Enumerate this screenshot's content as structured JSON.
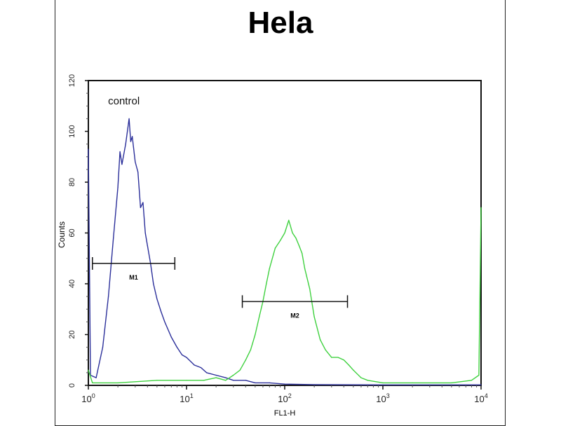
{
  "chart_data": {
    "type": "line",
    "title": "Hela",
    "xlabel": "FL1-H",
    "ylabel": "Counts",
    "x_scale": "log",
    "xlim": [
      1,
      10000
    ],
    "ylim": [
      0,
      120
    ],
    "grid": false,
    "x_ticks": [
      {
        "value": 1,
        "base": "10",
        "exp": "0"
      },
      {
        "value": 10,
        "base": "10",
        "exp": "1"
      },
      {
        "value": 100,
        "base": "10",
        "exp": "2"
      },
      {
        "value": 1000,
        "base": "10",
        "exp": "3"
      },
      {
        "value": 10000,
        "base": "10",
        "exp": "4"
      }
    ],
    "y_ticks": [
      0,
      20,
      40,
      60,
      80,
      100,
      120
    ],
    "annotations": [
      {
        "text": "control",
        "x": 2.3,
        "y": 112
      }
    ],
    "markers": [
      {
        "label": "M1",
        "x_start": 1.1,
        "x_end": 7.6,
        "y": 48
      },
      {
        "label": "M2",
        "x_start": 37,
        "x_end": 436,
        "y": 33
      }
    ],
    "series": [
      {
        "color": "#2b2f9a",
        "points": [
          [
            1,
            93
          ],
          [
            1.05,
            4
          ],
          [
            1.2,
            3
          ],
          [
            1.4,
            15
          ],
          [
            1.6,
            35
          ],
          [
            1.8,
            58
          ],
          [
            2.0,
            78
          ],
          [
            2.1,
            92
          ],
          [
            2.2,
            87
          ],
          [
            2.4,
            95
          ],
          [
            2.6,
            105
          ],
          [
            2.7,
            96
          ],
          [
            2.8,
            98
          ],
          [
            3.0,
            88
          ],
          [
            3.2,
            84
          ],
          [
            3.4,
            70
          ],
          [
            3.6,
            72
          ],
          [
            3.8,
            60
          ],
          [
            4.0,
            55
          ],
          [
            4.3,
            48
          ],
          [
            4.6,
            40
          ],
          [
            5,
            34
          ],
          [
            5.5,
            29
          ],
          [
            6,
            25
          ],
          [
            7,
            19
          ],
          [
            8,
            15
          ],
          [
            9,
            12
          ],
          [
            10,
            11
          ],
          [
            12,
            8
          ],
          [
            14,
            7
          ],
          [
            16,
            5
          ],
          [
            20,
            4
          ],
          [
            25,
            3
          ],
          [
            30,
            2
          ],
          [
            40,
            2
          ],
          [
            50,
            1
          ],
          [
            70,
            1
          ],
          [
            100,
            0.5
          ],
          [
            200,
            0.3
          ],
          [
            1000,
            0.2
          ],
          [
            10000,
            0.2
          ]
        ]
      },
      {
        "color": "#3fd13f",
        "points": [
          [
            1,
            6
          ],
          [
            1.1,
            1
          ],
          [
            2,
            1
          ],
          [
            5,
            2
          ],
          [
            10,
            2
          ],
          [
            15,
            2
          ],
          [
            20,
            3
          ],
          [
            25,
            2
          ],
          [
            30,
            4
          ],
          [
            35,
            6
          ],
          [
            40,
            10
          ],
          [
            45,
            14
          ],
          [
            50,
            20
          ],
          [
            55,
            27
          ],
          [
            60,
            33
          ],
          [
            65,
            40
          ],
          [
            70,
            46
          ],
          [
            80,
            54
          ],
          [
            90,
            57
          ],
          [
            100,
            60
          ],
          [
            110,
            65
          ],
          [
            120,
            60
          ],
          [
            130,
            58
          ],
          [
            140,
            55
          ],
          [
            150,
            52
          ],
          [
            160,
            46
          ],
          [
            180,
            38
          ],
          [
            200,
            27
          ],
          [
            230,
            18
          ],
          [
            260,
            14
          ],
          [
            300,
            11
          ],
          [
            350,
            11
          ],
          [
            400,
            10
          ],
          [
            450,
            8
          ],
          [
            500,
            6
          ],
          [
            600,
            3
          ],
          [
            700,
            2
          ],
          [
            1000,
            1
          ],
          [
            2000,
            1
          ],
          [
            5000,
            1
          ],
          [
            8000,
            2
          ],
          [
            9500,
            4
          ],
          [
            10000,
            70
          ]
        ]
      }
    ]
  }
}
